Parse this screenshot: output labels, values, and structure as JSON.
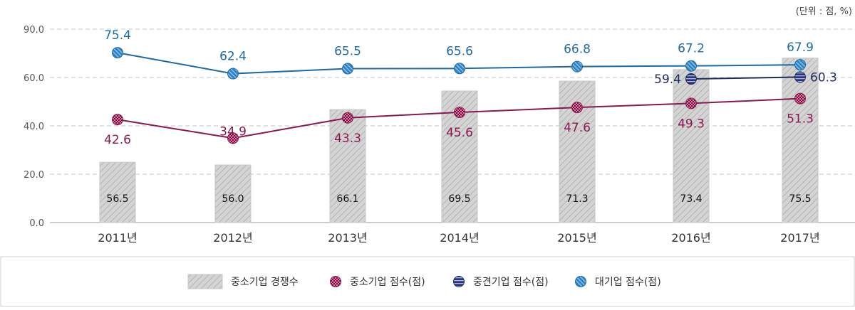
{
  "chart_data": {
    "type": "bar",
    "unit_note": "(단위 : 점, %)",
    "categories": [
      "2011년",
      "2012년",
      "2013년",
      "2014년",
      "2015년",
      "2016년",
      "2017년"
    ],
    "y_ticks": [
      "0.0",
      "20.0",
      "40.0",
      "60.0",
      "90.0"
    ],
    "series": [
      {
        "name": "중소기업 경쟁수",
        "kind": "bar",
        "values": [
          56.5,
          56.0,
          66.1,
          69.5,
          71.3,
          73.4,
          75.5
        ],
        "labels": [
          "56.5",
          "56.0",
          "66.1",
          "69.5",
          "71.3",
          "73.4",
          "75.5"
        ],
        "color": "#cccccc"
      },
      {
        "name": "중소기업 점수(점)",
        "kind": "line",
        "values": [
          42.6,
          34.9,
          43.3,
          45.6,
          47.6,
          49.3,
          51.3
        ],
        "labels": [
          "42.6",
          "34.9",
          "43.3",
          "45.6",
          "47.6",
          "49.3",
          "51.3"
        ],
        "color": "#8a1750"
      },
      {
        "name": "중견기업 점수(점)",
        "kind": "line",
        "values": [
          null,
          null,
          null,
          null,
          null,
          59.4,
          60.3
        ],
        "labels": [
          "",
          "",
          "",
          "",
          "",
          "59.4",
          "60.3"
        ],
        "color": "#1f2a5c"
      },
      {
        "name": "대기업 점수(점)",
        "kind": "line",
        "values": [
          75.4,
          62.4,
          65.5,
          65.6,
          66.8,
          67.2,
          67.9
        ],
        "labels": [
          "75.4",
          "62.4",
          "65.5",
          "65.6",
          "66.8",
          "67.2",
          "67.9"
        ],
        "color": "#1d6aa6"
      }
    ],
    "grid": true,
    "legend_position": "bottom"
  }
}
